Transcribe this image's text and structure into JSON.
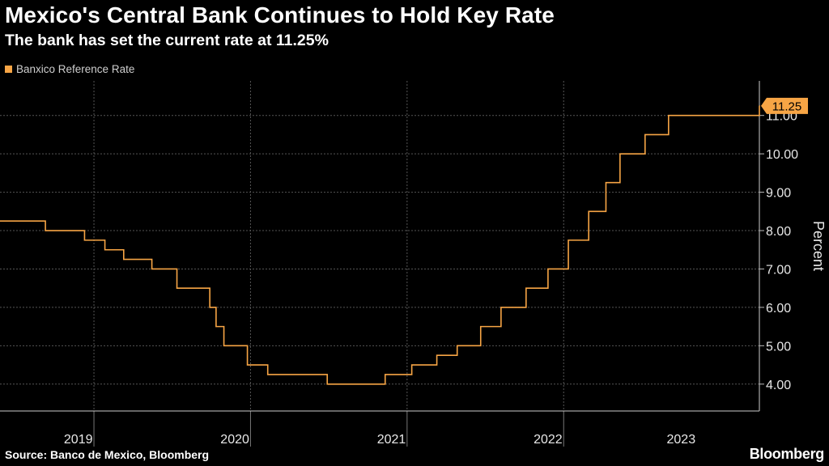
{
  "header": {
    "title": "Mexico's Central Bank Continues to Hold Key Rate",
    "subtitle": "The bank has set the current rate at 11.25%"
  },
  "footer": {
    "source": "Source: Banco de Mexico, Bloomberg",
    "brand": "Bloomberg"
  },
  "colors": {
    "line": "#f7a545",
    "background": "#000000",
    "grid": "#555555"
  },
  "chart_data": {
    "type": "line",
    "step": true,
    "title": "Mexico's Central Bank Continues to Hold Key Rate",
    "subtitle": "The bank has set the current rate at 11.25%",
    "xlabel": "",
    "ylabel": "Percent",
    "y_axis_side": "right",
    "ylim": [
      3.3,
      11.9
    ],
    "xlim": [
      2019.0,
      2023.85
    ],
    "yticks": [
      4,
      5,
      6,
      7,
      8,
      9,
      10,
      11
    ],
    "ytick_labels": [
      "4.00",
      "5.00",
      "6.00",
      "7.00",
      "8.00",
      "9.00",
      "10.00",
      "11.00"
    ],
    "xticks": [
      2019.5,
      2020.5,
      2021.5,
      2022.5,
      2023.35
    ],
    "xtick_labels": [
      "2019",
      "2020",
      "2021",
      "2022",
      "2023"
    ],
    "year_boundaries": [
      2019.6,
      2020.6,
      2021.6,
      2022.6
    ],
    "grid": true,
    "legend": "top-left",
    "last_value_label": "11.25",
    "series": [
      {
        "name": "Banxico Reference Rate",
        "x": [
          2019.0,
          2019.29,
          2019.54,
          2019.67,
          2019.79,
          2019.97,
          2020.13,
          2020.34,
          2020.38,
          2020.43,
          2020.58,
          2020.71,
          2020.84,
          2021.09,
          2021.46,
          2021.63,
          2021.79,
          2021.92,
          2022.07,
          2022.2,
          2022.36,
          2022.5,
          2022.63,
          2022.76,
          2022.87,
          2022.96,
          2023.12,
          2023.27,
          2023.85
        ],
        "values": [
          8.25,
          8.0,
          7.75,
          7.5,
          7.25,
          7.0,
          6.5,
          6.0,
          5.5,
          5.0,
          4.5,
          4.25,
          4.25,
          4.0,
          4.25,
          4.5,
          4.75,
          5.0,
          5.5,
          6.0,
          6.5,
          7.0,
          7.75,
          8.5,
          9.25,
          10.0,
          10.5,
          11.0,
          11.25
        ]
      }
    ]
  }
}
